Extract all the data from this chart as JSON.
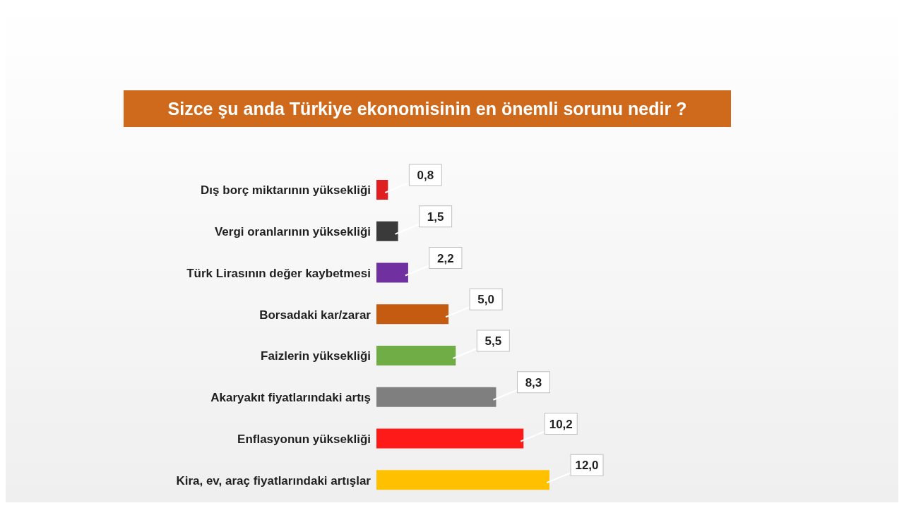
{
  "chart_data": {
    "type": "bar",
    "title": "Sizce şu anda Türkiye ekonomisinin en önemli sorunu nedir ?",
    "orientation": "horizontal",
    "categories": [
      "Dış borç miktarının yüksekliği",
      "Vergi oranlarının yüksekliği",
      "Türk Lirasının değer kaybetmesi",
      "Borsadaki kar/zarar",
      "Faizlerin yüksekliği",
      "Akaryakıt fiyatlarındaki artış",
      "Enflasyonun yüksekliği",
      "Kira, ev, araç fiyatlarındaki artışlar"
    ],
    "values": [
      0.8,
      1.5,
      2.2,
      5.0,
      5.5,
      8.3,
      10.2,
      12.0
    ],
    "value_labels": [
      "0,8",
      "1,5",
      "2,2",
      "5,0",
      "5,5",
      "8,3",
      "10,2",
      "12,0"
    ],
    "colors": [
      "#e02020",
      "#3a3a3a",
      "#7030a0",
      "#c55a11",
      "#70ad47",
      "#7f7f7f",
      "#ff1a1a",
      "#ffc000"
    ]
  }
}
